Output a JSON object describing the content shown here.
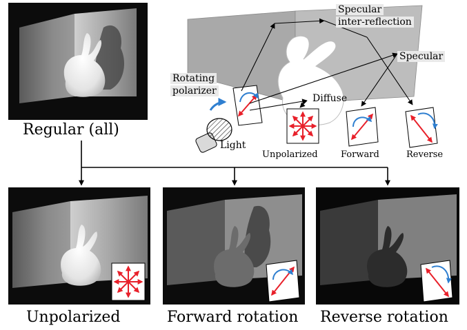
{
  "figure": {
    "captions": {
      "regular": "Regular (all)",
      "unpolarized": "Unpolarized",
      "forward_rotation": "Forward rotation",
      "reverse_rotation": "Reverse rotation"
    },
    "schematic": {
      "specular_inter_reflection": [
        "Specular",
        "inter-reflection"
      ],
      "specular": "Specular",
      "rotating_polarizer": [
        "Rotating",
        "polarizer"
      ],
      "diffuse": "Diffuse",
      "light": "Light",
      "unpolarized": "Unpolarized",
      "forward": "Forward",
      "reverse": "Reverse"
    }
  },
  "colors": {
    "arrow_red": "#e8202a",
    "arrow_blue": "#2f7fd0",
    "wall_gray": "#b4b4b4",
    "photo_dark": "#0c0c0c"
  }
}
